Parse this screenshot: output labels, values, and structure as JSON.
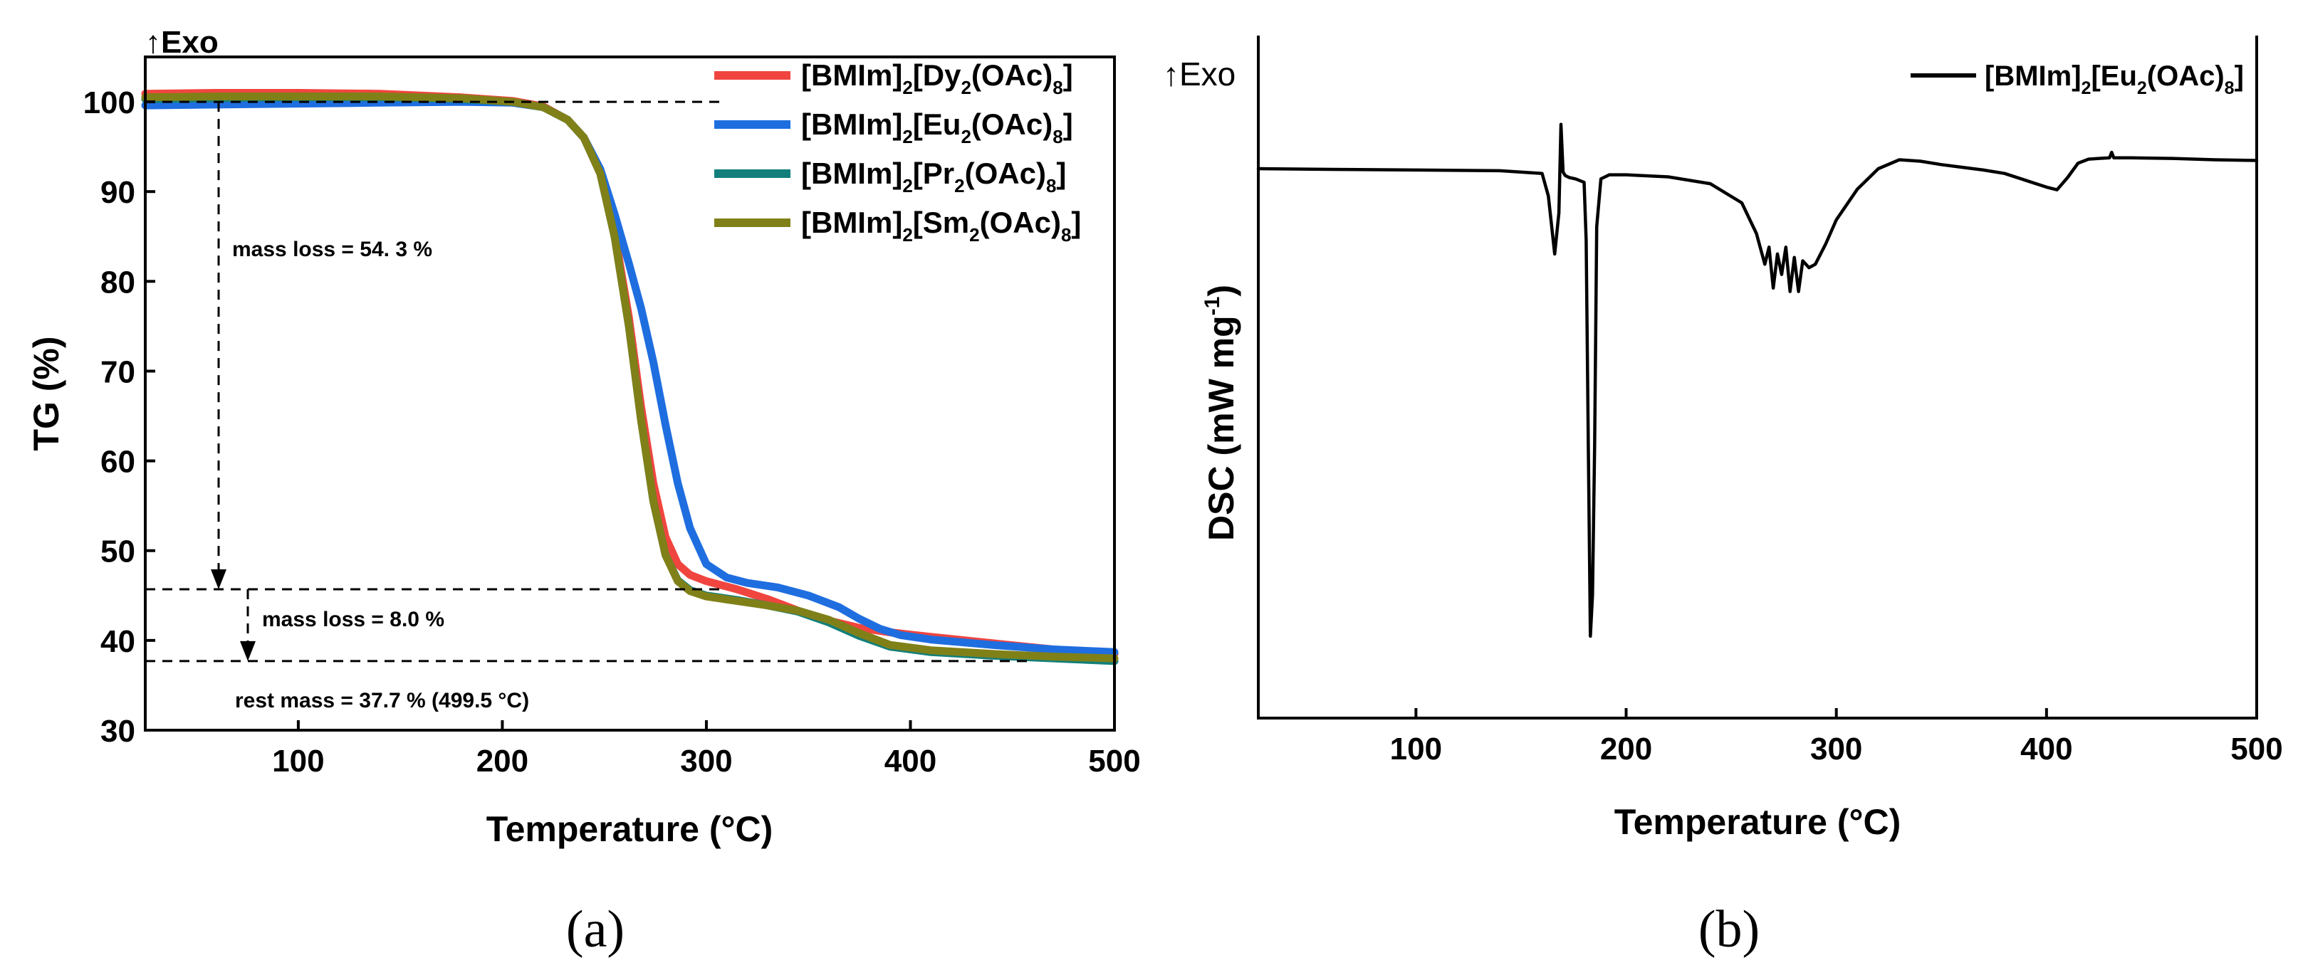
{
  "chart_data": [
    {
      "type": "line",
      "panel_label": "(a)",
      "exo_label": "↑Exo",
      "xlabel": "Temperature (°C)",
      "ylabel": "TG (%)",
      "xlim": [
        25,
        500
      ],
      "ylim": [
        30,
        105
      ],
      "xticks": [
        100,
        200,
        300,
        400,
        500
      ],
      "yticks": [
        30,
        40,
        50,
        60,
        70,
        80,
        90,
        100
      ],
      "legend_position": "top-right",
      "series": [
        {
          "name": "[BMIm]2[Dy2(OAc)8]",
          "legend": {
            "a": "[BMIm]",
            "b": "2",
            "c": "[Dy",
            "d": "2",
            "e": "(OAc)",
            "f": "8",
            "g": "]"
          },
          "color": "#f0453f",
          "x": [
            25,
            60,
            100,
            140,
            180,
            205,
            220,
            232,
            240,
            248,
            255,
            262,
            268,
            274,
            280,
            286,
            292,
            300,
            315,
            330,
            345,
            360,
            375,
            390,
            410,
            440,
            470,
            500
          ],
          "y": [
            100.9,
            101.0,
            101.0,
            100.9,
            100.5,
            100.1,
            99.5,
            98.0,
            96.0,
            92.0,
            85.5,
            76.0,
            66.0,
            57.5,
            51.5,
            48.5,
            47.3,
            46.6,
            45.7,
            44.6,
            43.3,
            42.2,
            41.4,
            40.9,
            40.4,
            39.7,
            39.0,
            38.5
          ]
        },
        {
          "name": "[BMIm]2[Eu2(OAc)8]",
          "legend": {
            "a": "[BMIm]",
            "b": "2",
            "c": "[Eu",
            "d": "2",
            "e": "(OAc)",
            "f": "8",
            "g": "]"
          },
          "color": "#1f6ee0",
          "x": [
            25,
            60,
            100,
            140,
            180,
            205,
            220,
            232,
            240,
            248,
            255,
            262,
            268,
            274,
            280,
            286,
            292,
            300,
            310,
            320,
            335,
            350,
            365,
            375,
            385,
            395,
            410,
            440,
            470,
            500
          ],
          "y": [
            99.6,
            99.7,
            99.8,
            99.9,
            100.0,
            99.9,
            99.4,
            98.0,
            96.0,
            92.5,
            87.5,
            82.0,
            77.0,
            71.0,
            64.0,
            57.5,
            52.5,
            48.5,
            47.0,
            46.4,
            45.9,
            45.0,
            43.7,
            42.4,
            41.3,
            40.6,
            40.1,
            39.5,
            39.0,
            38.7
          ]
        },
        {
          "name": "[BMIm]2[Pr2(OAc)8]",
          "legend": {
            "a": "[BMIm]",
            "b": "2",
            "c": "[Pr",
            "d": "2",
            "e": "(OAc)",
            "f": "8",
            "g": "]"
          },
          "color": "#127f7a",
          "x": [
            25,
            60,
            100,
            140,
            180,
            205,
            220,
            232,
            240,
            248,
            255,
            262,
            268,
            274,
            280,
            286,
            292,
            300,
            315,
            330,
            345,
            360,
            375,
            390,
            410,
            440,
            470,
            500
          ],
          "y": [
            100.3,
            100.4,
            100.5,
            100.5,
            100.3,
            100.0,
            99.4,
            98.0,
            96.0,
            92.0,
            85.0,
            75.0,
            64.5,
            55.5,
            49.5,
            46.7,
            45.6,
            45.0,
            44.5,
            43.9,
            43.2,
            42.0,
            40.5,
            39.3,
            38.7,
            38.3,
            38.0,
            37.7
          ]
        },
        {
          "name": "[BMIm]2[Sm2(OAc)8]",
          "legend": {
            "a": "[BMIm]",
            "b": "2",
            "c": "[Sm",
            "d": "2",
            "e": "(OAc)",
            "f": "8",
            "g": "]"
          },
          "color": "#808018",
          "x": [
            25,
            60,
            100,
            140,
            180,
            205,
            220,
            232,
            240,
            248,
            255,
            262,
            268,
            274,
            280,
            286,
            292,
            300,
            315,
            330,
            345,
            360,
            375,
            390,
            410,
            440,
            470,
            500
          ],
          "y": [
            100.5,
            100.6,
            100.6,
            100.6,
            100.4,
            100.0,
            99.4,
            98.0,
            96.0,
            92.0,
            85.0,
            75.0,
            64.5,
            55.5,
            49.5,
            46.6,
            45.5,
            44.9,
            44.4,
            43.9,
            43.3,
            42.3,
            40.8,
            39.5,
            38.9,
            38.5,
            38.2,
            38.0
          ]
        }
      ],
      "annotations": {
        "mass_loss_1": "mass loss = 54. 3 %",
        "mass_loss_2": "mass loss = 8.0 %",
        "rest_mass": "rest mass  = 37.7 % (499.5 °C)",
        "ref_levels": [
          100.0,
          45.7,
          37.7
        ]
      }
    },
    {
      "type": "line",
      "panel_label": "(b)",
      "exo_label": "↑Exo",
      "xlabel": "Temperature (°C)",
      "ylabel": "DSC (mW mg-1)",
      "ylabel_parts": {
        "main": "DSC (mW mg",
        "sup": "-1",
        "close": ")"
      },
      "xlim": [
        25,
        500
      ],
      "ylim": [
        0,
        100
      ],
      "xticks": [
        100,
        200,
        300,
        400,
        500
      ],
      "yticks": [],
      "legend_position": "top-right",
      "series": [
        {
          "name": "[BMIm]2[Eu2(OAc)8]",
          "legend": {
            "a": "[BMIm]",
            "b": "2",
            "c": "[Eu",
            "d": "2",
            "e": "(OAc)",
            "f": "8",
            "g": "]"
          },
          "color": "#000000",
          "x": [
            25,
            60,
            100,
            140,
            160,
            163,
            166,
            168,
            169,
            170,
            171,
            173,
            176,
            180,
            181,
            182,
            183,
            184,
            185,
            186,
            188,
            192,
            200,
            220,
            240,
            255,
            262,
            266,
            268,
            270,
            272,
            274,
            276,
            278,
            280,
            282,
            284,
            287,
            290,
            295,
            300,
            310,
            320,
            330,
            340,
            350,
            360,
            370,
            380,
            390,
            400,
            405,
            410,
            415,
            420,
            425,
            430,
            431,
            432,
            440,
            460,
            480,
            500
          ],
          "y": [
            80.5,
            80.4,
            80.3,
            80.2,
            79.8,
            76.5,
            68.0,
            74.0,
            87.0,
            80.0,
            79.5,
            79.2,
            79.0,
            78.5,
            70.0,
            40.0,
            12.0,
            18.0,
            40.0,
            72.0,
            79.0,
            79.6,
            79.6,
            79.3,
            78.3,
            75.5,
            71.0,
            66.5,
            69.0,
            63.0,
            68.0,
            65.0,
            69.0,
            62.5,
            67.5,
            62.5,
            67.0,
            66.0,
            66.5,
            69.5,
            73.0,
            77.5,
            80.5,
            81.8,
            81.6,
            81.1,
            80.7,
            80.3,
            79.8,
            78.8,
            77.8,
            77.4,
            79.2,
            81.3,
            81.9,
            82.0,
            82.1,
            82.9,
            82.1,
            82.1,
            82.0,
            81.8,
            81.7
          ]
        }
      ]
    }
  ]
}
